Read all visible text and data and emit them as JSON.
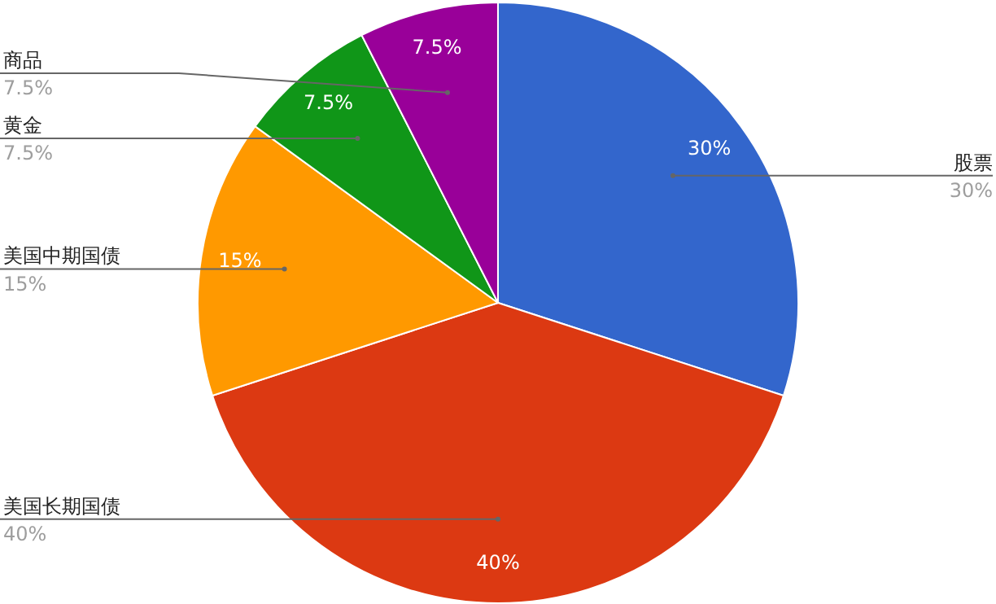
{
  "chart_data": {
    "type": "pie",
    "categories": [
      "股票",
      "美国长期国债",
      "美国中期国债",
      "黄金",
      "商品"
    ],
    "values": [
      30,
      40,
      15,
      7.5,
      7.5
    ],
    "colors": [
      "#3366cc",
      "#dc3912",
      "#ff9900",
      "#109618",
      "#990099"
    ],
    "value_labels": [
      "30%",
      "40%",
      "15%",
      "7.5%",
      "7.5%"
    ],
    "legend": false
  }
}
